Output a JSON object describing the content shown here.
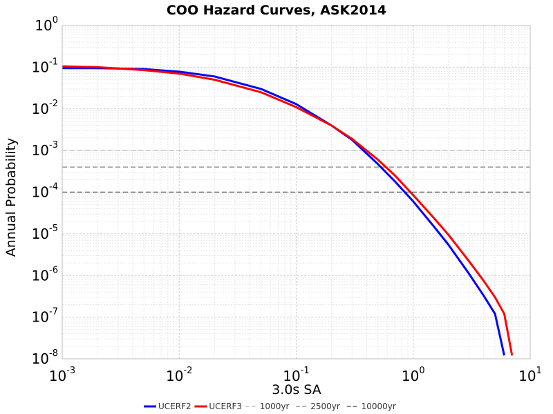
{
  "chart_data": {
    "type": "line",
    "title": "COO Hazard Curves, ASK2014",
    "xlabel": "3.0s SA",
    "ylabel": "Annual Probability",
    "xscale": "log",
    "yscale": "log",
    "xlim": [
      0.001,
      10
    ],
    "ylim": [
      1e-08,
      1
    ],
    "grid": true,
    "legend_position": "bottom",
    "x_ticks": [
      {
        "base": "10",
        "exp": "-3"
      },
      {
        "base": "10",
        "exp": "-2"
      },
      {
        "base": "10",
        "exp": "-1"
      },
      {
        "base": "10",
        "exp": "0"
      },
      {
        "base": "10",
        "exp": "1"
      }
    ],
    "y_ticks": [
      {
        "base": "10",
        "exp": "0"
      },
      {
        "base": "10",
        "exp": "-1"
      },
      {
        "base": "10",
        "exp": "-2"
      },
      {
        "base": "10",
        "exp": "-3"
      },
      {
        "base": "10",
        "exp": "-4"
      },
      {
        "base": "10",
        "exp": "-5"
      },
      {
        "base": "10",
        "exp": "-6"
      },
      {
        "base": "10",
        "exp": "-7"
      },
      {
        "base": "10",
        "exp": "-8"
      }
    ],
    "series": [
      {
        "name": "UCERF2",
        "color": "#0000ff",
        "x": [
          0.001,
          0.002,
          0.005,
          0.01,
          0.02,
          0.05,
          0.1,
          0.2,
          0.3,
          0.5,
          0.7,
          1.0,
          1.5,
          2.0,
          3.0,
          4.0,
          5.0,
          6.0
        ],
        "y": [
          0.095,
          0.095,
          0.09,
          0.078,
          0.06,
          0.03,
          0.013,
          0.004,
          0.0018,
          0.00047,
          0.00018,
          6e-05,
          1.5e-05,
          5.5e-06,
          1.1e-06,
          3.3e-07,
          1.2e-07,
          1.2e-08
        ]
      },
      {
        "name": "UCERF3",
        "color": "#ff0000",
        "x": [
          0.001,
          0.002,
          0.005,
          0.01,
          0.02,
          0.05,
          0.1,
          0.2,
          0.3,
          0.5,
          0.7,
          1.0,
          1.5,
          2.0,
          3.0,
          4.0,
          5.0,
          6.0,
          7.0
        ],
        "y": [
          0.105,
          0.1,
          0.085,
          0.07,
          0.05,
          0.025,
          0.011,
          0.004,
          0.0019,
          0.0006,
          0.00025,
          8.5e-05,
          2.4e-05,
          9.5e-06,
          2.2e-06,
          7.5e-07,
          3e-07,
          1.2e-07,
          1.2e-08
        ]
      }
    ],
    "reference_lines": [
      {
        "name": "1000yr",
        "y": 0.001,
        "color": "#c8c8c8"
      },
      {
        "name": "2500yr",
        "y": 0.0004,
        "color": "#969696"
      },
      {
        "name": "10000yr",
        "y": 0.0001,
        "color": "#646464"
      }
    ]
  }
}
